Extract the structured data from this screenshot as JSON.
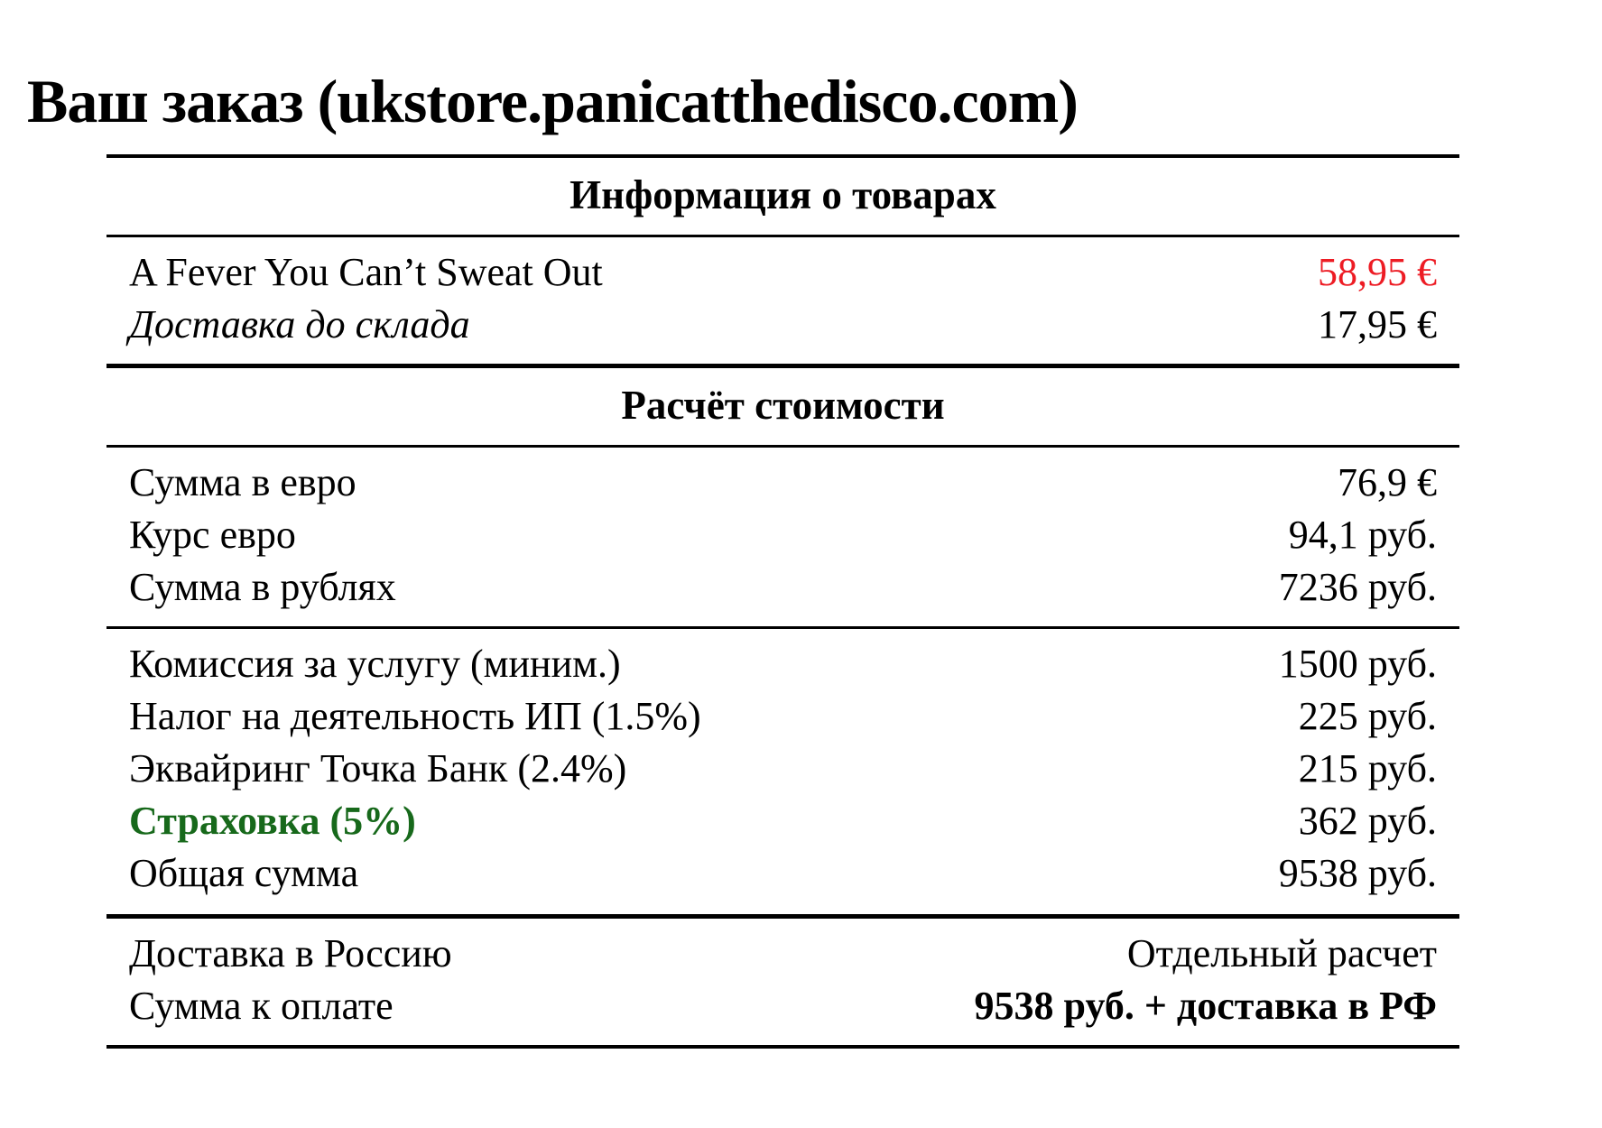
{
  "page": {
    "title": "Ваш заказ (ukstore.panicatthedisco.com)"
  },
  "colors": {
    "background": "#ffffff",
    "text": "#000000",
    "price_highlight_red": "#ed1c24",
    "insurance_green": "#17691b"
  },
  "table": {
    "sections": [
      {
        "header": "Информация о товарах",
        "rows": [
          {
            "label": "A Fever You Can’t Sweat Out",
            "value": "58,95 €"
          },
          {
            "label": "Доставка до склада",
            "value": "17,95 €"
          }
        ]
      },
      {
        "header": "Расчёт стоимости",
        "groups": [
          {
            "rows": [
              {
                "label": "Сумма в евро",
                "value": "76,9 €"
              },
              {
                "label": "Курс евро",
                "value": "94,1 руб."
              },
              {
                "label": "Сумма в рублях",
                "value": "7236 руб."
              }
            ]
          },
          {
            "rows": [
              {
                "label": "Комиссия за услугу (миним.)",
                "value": "1500 руб."
              },
              {
                "label": "Налог на деятельность ИП (1.5%)",
                "value": "225 руб."
              },
              {
                "label": "Эквайринг Точка Банк (2.4%)",
                "value": "215 руб."
              },
              {
                "label": "Страховка (5%)",
                "value": "362 руб."
              },
              {
                "label": "Общая сумма",
                "value": "9538 руб."
              }
            ]
          },
          {
            "rows": [
              {
                "label": "Доставка в Россию",
                "value": "Отдельный расчет"
              },
              {
                "label": "Сумма к оплате",
                "value": "9538 руб. + доставка в РФ"
              }
            ]
          }
        ]
      }
    ]
  }
}
